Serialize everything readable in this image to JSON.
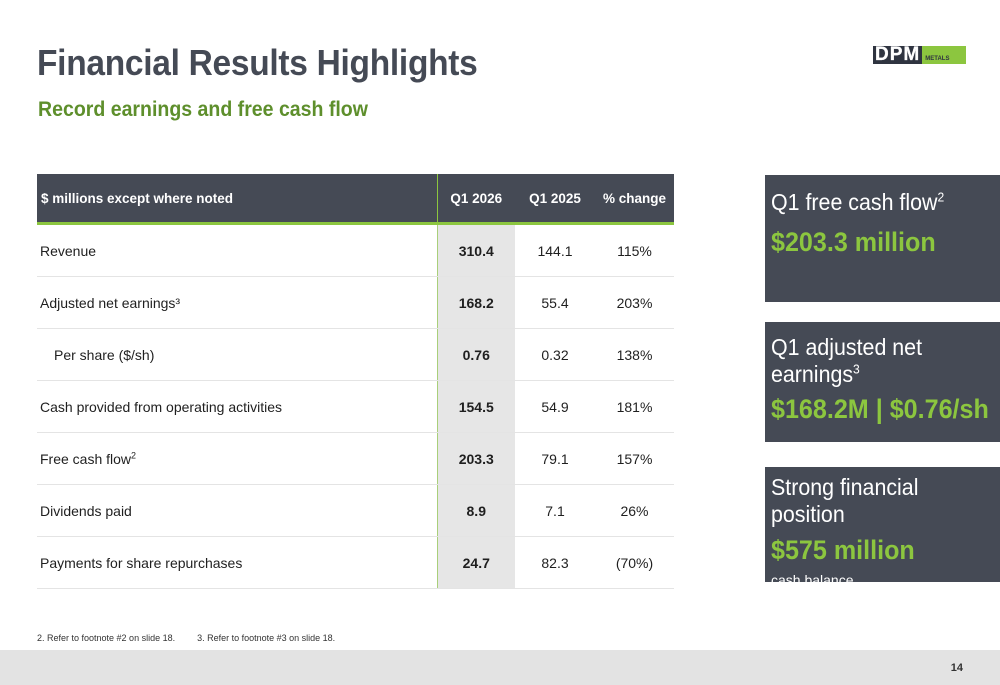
{
  "header": {
    "title": "Financial Results Highlights",
    "subtitle": "Record earnings and free cash flow",
    "logo_text": "DPM",
    "logo_subtext": "METALS"
  },
  "table": {
    "columns": [
      "$ millions except where noted",
      "Q1 2026",
      "Q1 2025",
      "% change"
    ],
    "rows": [
      {
        "label": "Revenue",
        "sup": "",
        "q1_2026": "310.4",
        "q1_2025": "144.1",
        "change": "115%"
      },
      {
        "label": "Adjusted net earnings³",
        "sup": "",
        "q1_2026": "168.2",
        "q1_2025": "55.4",
        "change": "203%"
      },
      {
        "label": "Per share ($/sh)",
        "sup": "",
        "q1_2026": "0.76",
        "q1_2025": "0.32",
        "change": "138%"
      },
      {
        "label": "Cash provided from operating activities",
        "sup": "",
        "q1_2026": "154.5",
        "q1_2025": "54.9",
        "change": "181%"
      },
      {
        "label": "Free cash flow",
        "sup": "2",
        "q1_2026": "203.3",
        "q1_2025": "79.1",
        "change": "157%"
      },
      {
        "label": "Dividends paid",
        "sup": "",
        "q1_2026": "8.9",
        "q1_2025": "7.1",
        "change": "26%"
      },
      {
        "label": "Payments for share repurchases",
        "sup": "",
        "q1_2026": "24.7",
        "q1_2025": "82.3",
        "change": "(70%)"
      }
    ]
  },
  "cards": [
    {
      "head": "Q1 free cash flow",
      "head_sup": "2",
      "value": "$203.3 million",
      "note": ""
    },
    {
      "head": "Q1 adjusted net earnings",
      "head_sup": "3",
      "value": "$168.2M | $0.76/sh",
      "note": ""
    },
    {
      "head": "Strong financial position",
      "head_sup": "",
      "value": "$575 million",
      "note": "cash balance"
    }
  ],
  "footnotes": [
    "2. Refer to footnote #2 on slide 18.",
    "3. Refer to footnote #3 on slide 18."
  ],
  "page_number": "14",
  "colors": {
    "accent_green": "#8cc63f",
    "dark_gray": "#454a55",
    "subtitle_green": "#5e8f2c"
  }
}
